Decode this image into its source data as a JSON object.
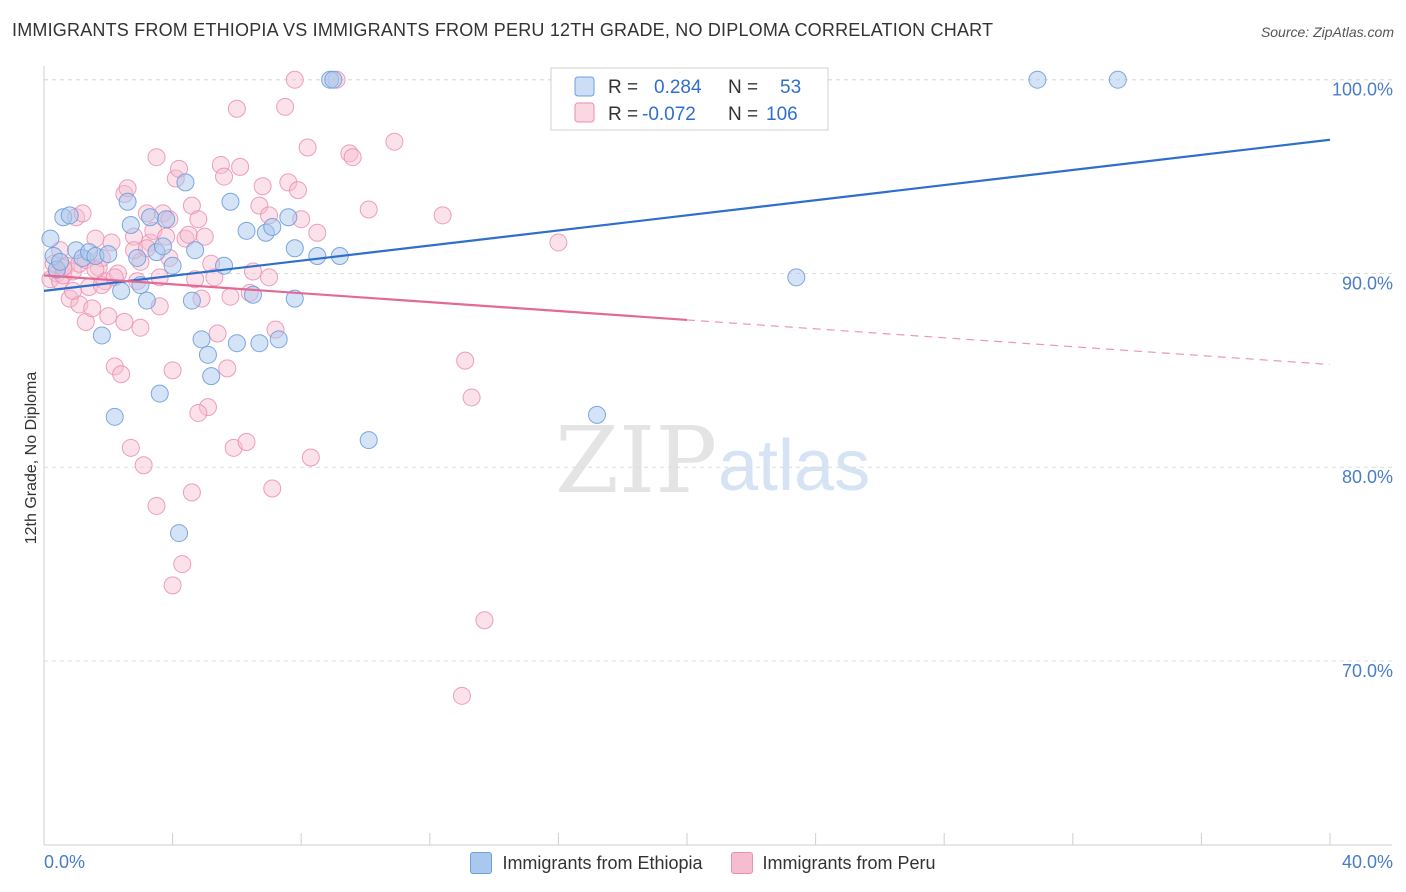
{
  "header": {
    "title": "IMMIGRANTS FROM ETHIOPIA VS IMMIGRANTS FROM PERU 12TH GRADE, NO DIPLOMA CORRELATION CHART",
    "source": "Source: ZipAtlas.com"
  },
  "watermark": {
    "zip": "ZIP",
    "atlas": "atlas"
  },
  "legend_box": {
    "rows": [
      {
        "r_label": "R =",
        "r_value": "0.284",
        "n_label": "N =",
        "n_value": "53"
      },
      {
        "r_label": "R =",
        "r_value": "-0.072",
        "n_label": "N =",
        "n_value": "106"
      }
    ]
  },
  "bottom_legend": {
    "ethiopia": "Immigrants from Ethiopia",
    "peru": "Immigrants from Peru"
  },
  "colors": {
    "ethiopia_fill": "#a9c8ee",
    "ethiopia_stroke": "#6f9fdc",
    "ethiopia_line": "#2f6fcb",
    "peru_fill": "#f6bcd0",
    "peru_stroke": "#ea8fb0",
    "peru_line": "#e46a95",
    "grid": "#dcdcdc",
    "tick_label": "#4a7cc9"
  },
  "chart_data": {
    "type": "scatter",
    "title": "IMMIGRANTS FROM ETHIOPIA VS IMMIGRANTS FROM PERU 12TH GRADE, NO DIPLOMA CORRELATION CHART",
    "xlabel": "",
    "ylabel": "12th Grade, No Diploma",
    "xlim": [
      0,
      40
    ],
    "ylim": [
      60.5,
      100.5
    ],
    "x_tick_labels": [
      "0.0%",
      "40.0%"
    ],
    "y_ticks": [
      70,
      80,
      90,
      100
    ],
    "y_tick_labels": [
      "70.0%",
      "80.0%",
      "90.0%",
      "100.0%"
    ],
    "grid": true,
    "series": [
      {
        "name": "Immigrants from Ethiopia",
        "R": 0.284,
        "N": 53,
        "trend": {
          "x0": 0.0,
          "y0": 89.1,
          "x1": 40.0,
          "y1": 96.9,
          "solid_until": 40.0
        },
        "points": [
          [
            0.2,
            91.8
          ],
          [
            0.3,
            90.9
          ],
          [
            0.4,
            90.2
          ],
          [
            0.6,
            92.9
          ],
          [
            0.8,
            93.0
          ],
          [
            1.0,
            91.2
          ],
          [
            1.2,
            90.8
          ],
          [
            1.4,
            91.1
          ],
          [
            1.6,
            90.9
          ],
          [
            1.8,
            86.8
          ],
          [
            2.0,
            91.0
          ],
          [
            2.2,
            82.6
          ],
          [
            2.4,
            89.1
          ],
          [
            2.6,
            93.7
          ],
          [
            2.7,
            92.5
          ],
          [
            2.9,
            90.8
          ],
          [
            3.0,
            89.4
          ],
          [
            3.2,
            88.6
          ],
          [
            3.3,
            92.9
          ],
          [
            3.5,
            91.1
          ],
          [
            3.6,
            83.8
          ],
          [
            3.7,
            91.4
          ],
          [
            3.8,
            92.8
          ],
          [
            4.0,
            90.4
          ],
          [
            4.2,
            76.6
          ],
          [
            4.4,
            94.7
          ],
          [
            4.6,
            88.6
          ],
          [
            4.7,
            91.2
          ],
          [
            4.9,
            86.6
          ],
          [
            5.1,
            85.8
          ],
          [
            5.2,
            84.7
          ],
          [
            5.6,
            90.4
          ],
          [
            5.8,
            93.7
          ],
          [
            6.0,
            86.4
          ],
          [
            6.3,
            92.2
          ],
          [
            6.5,
            88.9
          ],
          [
            6.7,
            86.4
          ],
          [
            6.9,
            92.1
          ],
          [
            7.1,
            92.4
          ],
          [
            7.3,
            86.6
          ],
          [
            7.6,
            92.9
          ],
          [
            7.8,
            88.7
          ],
          [
            7.8,
            91.3
          ],
          [
            8.5,
            90.9
          ],
          [
            8.9,
            100.0
          ],
          [
            9.0,
            100.0
          ],
          [
            9.2,
            90.9
          ],
          [
            10.1,
            81.4
          ],
          [
            17.2,
            82.7
          ],
          [
            23.4,
            89.8
          ],
          [
            30.9,
            100.0
          ],
          [
            33.4,
            100.0
          ],
          [
            0.5,
            90.6
          ]
        ]
      },
      {
        "name": "Immigrants from Peru",
        "R": -0.072,
        "N": 106,
        "trend": {
          "x0": 0.0,
          "y0": 89.9,
          "x1": 40.0,
          "y1": 85.3,
          "solid_until": 20.0
        },
        "points": [
          [
            0.2,
            89.7
          ],
          [
            0.3,
            90.5
          ],
          [
            0.4,
            90.0
          ],
          [
            0.5,
            91.2
          ],
          [
            0.5,
            89.6
          ],
          [
            0.6,
            89.9
          ],
          [
            0.7,
            90.4
          ],
          [
            0.8,
            88.7
          ],
          [
            0.9,
            90.1
          ],
          [
            1.0,
            92.9
          ],
          [
            1.1,
            90.5
          ],
          [
            1.1,
            88.4
          ],
          [
            1.2,
            93.1
          ],
          [
            1.3,
            87.5
          ],
          [
            1.4,
            89.3
          ],
          [
            1.5,
            88.2
          ],
          [
            1.6,
            91.8
          ],
          [
            1.7,
            90.3
          ],
          [
            1.8,
            90.8
          ],
          [
            1.9,
            89.6
          ],
          [
            2.0,
            87.8
          ],
          [
            2.1,
            91.6
          ],
          [
            2.2,
            85.2
          ],
          [
            2.3,
            90.0
          ],
          [
            2.4,
            84.8
          ],
          [
            2.5,
            94.1
          ],
          [
            2.5,
            87.5
          ],
          [
            2.6,
            94.4
          ],
          [
            2.7,
            81.0
          ],
          [
            2.8,
            91.9
          ],
          [
            2.9,
            89.6
          ],
          [
            3.0,
            87.2
          ],
          [
            3.0,
            90.6
          ],
          [
            3.1,
            80.1
          ],
          [
            3.2,
            93.1
          ],
          [
            3.3,
            91.6
          ],
          [
            3.4,
            92.2
          ],
          [
            3.5,
            96.0
          ],
          [
            3.5,
            78.0
          ],
          [
            3.6,
            88.3
          ],
          [
            3.6,
            89.8
          ],
          [
            3.7,
            93.1
          ],
          [
            3.8,
            91.9
          ],
          [
            3.9,
            92.8
          ],
          [
            4.0,
            85.0
          ],
          [
            4.1,
            94.9
          ],
          [
            4.2,
            95.4
          ],
          [
            4.3,
            75.0
          ],
          [
            4.4,
            91.8
          ],
          [
            4.5,
            92.0
          ],
          [
            4.6,
            93.5
          ],
          [
            4.6,
            78.7
          ],
          [
            4.7,
            89.7
          ],
          [
            4.8,
            92.8
          ],
          [
            4.9,
            88.7
          ],
          [
            5.0,
            91.9
          ],
          [
            5.1,
            83.1
          ],
          [
            5.2,
            90.5
          ],
          [
            5.3,
            89.8
          ],
          [
            5.4,
            86.9
          ],
          [
            5.5,
            95.6
          ],
          [
            5.6,
            95.0
          ],
          [
            5.7,
            85.1
          ],
          [
            5.8,
            88.8
          ],
          [
            5.9,
            81.0
          ],
          [
            6.0,
            98.5
          ],
          [
            6.1,
            95.5
          ],
          [
            6.3,
            81.3
          ],
          [
            6.4,
            89.0
          ],
          [
            6.5,
            90.1
          ],
          [
            6.7,
            93.5
          ],
          [
            6.8,
            94.5
          ],
          [
            7.0,
            89.8
          ],
          [
            7.0,
            93.0
          ],
          [
            7.1,
            78.9
          ],
          [
            7.2,
            87.1
          ],
          [
            7.5,
            98.6
          ],
          [
            7.6,
            94.7
          ],
          [
            7.8,
            100.0
          ],
          [
            7.9,
            94.3
          ],
          [
            8.0,
            92.8
          ],
          [
            8.2,
            96.5
          ],
          [
            8.3,
            80.5
          ],
          [
            8.5,
            92.1
          ],
          [
            9.1,
            100.0
          ],
          [
            9.5,
            96.2
          ],
          [
            9.6,
            96.0
          ],
          [
            10.1,
            93.3
          ],
          [
            10.9,
            96.8
          ],
          [
            12.4,
            93.0
          ],
          [
            13.0,
            68.2
          ],
          [
            13.1,
            85.5
          ],
          [
            13.3,
            83.6
          ],
          [
            13.7,
            72.1
          ],
          [
            16.0,
            91.6
          ],
          [
            0.6,
            90.3
          ],
          [
            1.3,
            90.7
          ],
          [
            1.8,
            89.4
          ],
          [
            2.8,
            91.2
          ],
          [
            3.9,
            90.8
          ],
          [
            4.8,
            82.8
          ],
          [
            4.0,
            73.9
          ],
          [
            2.2,
            89.8
          ],
          [
            0.9,
            89.1
          ],
          [
            1.6,
            90.2
          ],
          [
            3.2,
            91.3
          ]
        ]
      }
    ]
  }
}
